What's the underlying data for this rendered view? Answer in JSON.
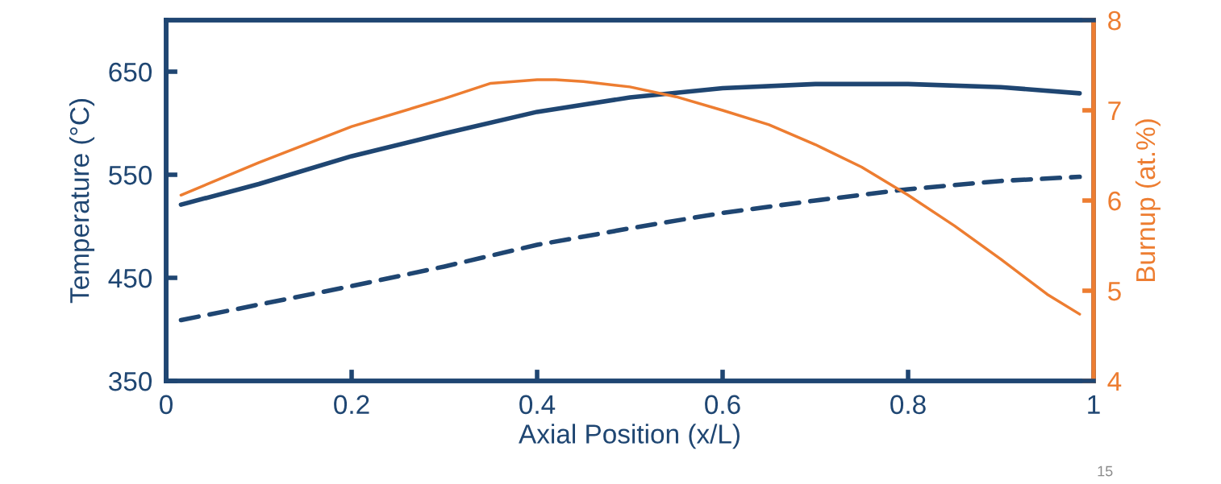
{
  "chart_data": {
    "type": "line",
    "xlabel": "Axial Position (x/L)",
    "ylabel": "Temperature (°C)",
    "y2label": "Burnup (at.%)",
    "xlim": [
      0,
      1
    ],
    "xticks": [
      0,
      0.2,
      0.4,
      0.6,
      0.8,
      1
    ],
    "ylim": [
      350,
      700
    ],
    "yticks": [
      350,
      450,
      550,
      650
    ],
    "y2lim": [
      4,
      8
    ],
    "y2ticks": [
      4,
      5,
      6,
      7,
      8
    ],
    "grid": false,
    "legend": false,
    "marker": "none",
    "annotations": [
      "15"
    ],
    "series": [
      {
        "color": "#1f4672",
        "line_style": "solid",
        "x": [
          0.016,
          0.1,
          0.2,
          0.3,
          0.4,
          0.5,
          0.6,
          0.7,
          0.75,
          0.8,
          0.9,
          0.985
        ],
        "values": [
          521,
          541,
          568,
          590,
          611,
          625,
          634,
          638,
          638,
          638,
          635,
          629
        ]
      },
      {
        "color": "#1f4672",
        "line_style": "dashed",
        "x": [
          0.016,
          0.1,
          0.2,
          0.3,
          0.4,
          0.5,
          0.6,
          0.7,
          0.8,
          0.9,
          0.985
        ],
        "values": [
          409,
          424,
          442,
          461,
          482,
          498,
          513,
          525,
          536,
          544,
          548
        ]
      },
      {
        "color": "#ed7d31",
        "line_style": "solid",
        "axis": "y2",
        "x": [
          0.016,
          0.1,
          0.2,
          0.3,
          0.35,
          0.4,
          0.42,
          0.45,
          0.5,
          0.55,
          0.6,
          0.65,
          0.7,
          0.75,
          0.8,
          0.85,
          0.9,
          0.95,
          0.985
        ],
        "values": [
          6.06,
          6.42,
          6.82,
          7.13,
          7.3,
          7.34,
          7.34,
          7.32,
          7.26,
          7.15,
          7.0,
          6.84,
          6.62,
          6.37,
          6.06,
          5.72,
          5.35,
          4.96,
          4.74
        ]
      }
    ]
  }
}
